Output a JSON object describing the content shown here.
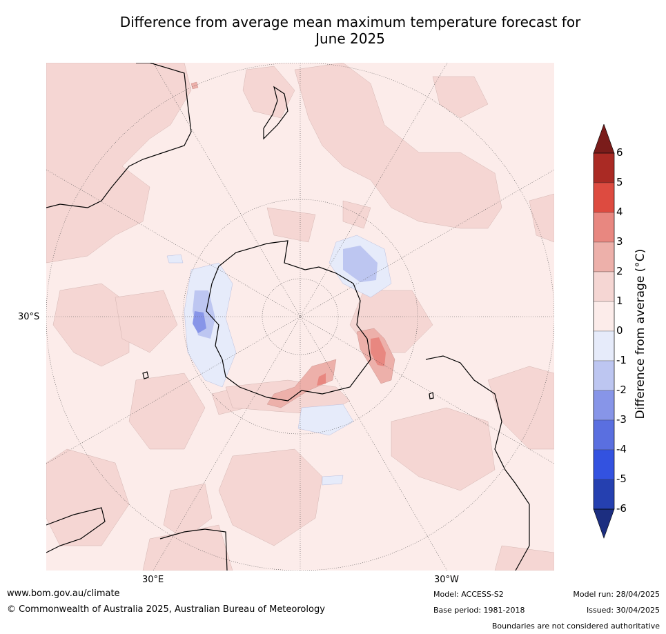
{
  "title_line1": "Difference from average mean maximum temperature forecast for",
  "title_line2": "June 2025",
  "map": {
    "projection": "south-polar-stereographic",
    "lat_label": "30°S",
    "lon_labels": [
      "30°E",
      "30°W"
    ],
    "background_color": "#fcecea",
    "colors": {
      "warm_1_2": "#f5d6d3",
      "warm_2_3": "#edb0aa",
      "warm_3_4": "#e88780",
      "cool_0_m1": "#e6ebfa",
      "cool_m1_m2": "#bdc6f1",
      "cool_m2_m3": "#8795e8"
    }
  },
  "colorbar": {
    "title": "Difference from average (°C)",
    "ticks": [
      "6",
      "5",
      "4",
      "3",
      "2",
      "1",
      "0",
      "-1",
      "-2",
      "-3",
      "-4",
      "-5",
      "-6"
    ],
    "colors": [
      "#7a1c1a",
      "#aa2a24",
      "#dd4b40",
      "#e88780",
      "#edb0aa",
      "#f5d6d3",
      "#fcecea",
      "#e6ebfa",
      "#bdc6f1",
      "#8795e8",
      "#5a6fe0",
      "#3352e0",
      "#2540b0",
      "#1c2e80"
    ]
  },
  "footer": {
    "website": "www.bom.gov.au/climate",
    "copyright": "© Commonwealth of Australia 2025, Australian Bureau of Meteorology",
    "model": "Model: ACCESS-S2",
    "base_period": "Base period: 1981-2018",
    "model_run": "Model run: 28/04/2025",
    "issued": "Issued: 30/04/2025",
    "disclaimer": "Boundaries are not considered authoritative"
  }
}
